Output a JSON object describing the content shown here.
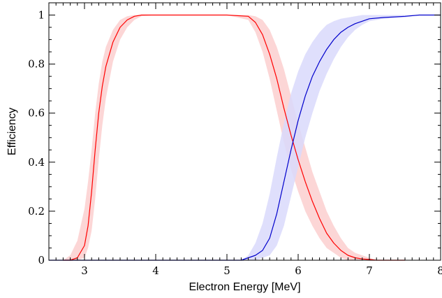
{
  "chart_data": {
    "type": "line",
    "title": "",
    "xlabel": "Electron Energy [MeV]",
    "ylabel": "Efficiency",
    "xlim": [
      2.5,
      8.0
    ],
    "ylim": [
      0,
      1.05
    ],
    "x_ticks": [
      3,
      4,
      5,
      6,
      7,
      8
    ],
    "x_tick_labels": [
      "3",
      "4",
      "5",
      "6",
      "7",
      "8"
    ],
    "y_ticks": [
      0,
      0.2,
      0.4,
      0.6,
      0.8,
      1
    ],
    "y_tick_labels": [
      "0",
      "0.2",
      "0.4",
      "0.6",
      "0.8",
      "1"
    ],
    "grid": false,
    "legend": "none",
    "series": [
      {
        "color": "#ff0000",
        "band_color": "#fccfcf",
        "x": [
          2.7,
          2.8,
          2.9,
          3.0,
          3.05,
          3.1,
          3.15,
          3.2,
          3.25,
          3.3,
          3.4,
          3.5,
          3.6,
          3.7,
          3.8,
          4.0,
          4.5,
          5.0,
          5.3,
          5.4,
          5.5,
          5.6,
          5.7,
          5.8,
          5.9,
          6.0,
          6.1,
          6.2,
          6.3,
          6.4,
          6.5,
          6.6,
          6.7,
          6.8,
          6.9,
          7.0,
          7.1,
          7.3,
          7.5
        ],
        "y": [
          0.0,
          0.0,
          0.01,
          0.06,
          0.14,
          0.28,
          0.45,
          0.6,
          0.71,
          0.79,
          0.89,
          0.95,
          0.98,
          0.995,
          1.0,
          1.0,
          1.0,
          1.0,
          0.995,
          0.97,
          0.92,
          0.84,
          0.74,
          0.62,
          0.51,
          0.41,
          0.32,
          0.24,
          0.17,
          0.11,
          0.07,
          0.04,
          0.02,
          0.01,
          0.005,
          0.003,
          0.0,
          0.0,
          0.0
        ],
        "band_lower": [
          0.0,
          0.0,
          0.0,
          0.01,
          0.05,
          0.12,
          0.25,
          0.41,
          0.55,
          0.66,
          0.81,
          0.9,
          0.95,
          0.98,
          0.995,
          1.0,
          1.0,
          1.0,
          0.98,
          0.93,
          0.85,
          0.74,
          0.61,
          0.48,
          0.37,
          0.28,
          0.2,
          0.14,
          0.09,
          0.05,
          0.03,
          0.01,
          0.0,
          0.0,
          0.0,
          0.0,
          0.0,
          0.0,
          0.0
        ],
        "band_upper": [
          0.0,
          0.02,
          0.08,
          0.21,
          0.32,
          0.45,
          0.6,
          0.72,
          0.81,
          0.87,
          0.94,
          0.98,
          0.995,
          1.0,
          1.0,
          1.0,
          1.0,
          1.0,
          1.0,
          0.995,
          0.98,
          0.94,
          0.87,
          0.78,
          0.67,
          0.56,
          0.46,
          0.36,
          0.28,
          0.2,
          0.14,
          0.09,
          0.05,
          0.03,
          0.02,
          0.01,
          0.0,
          0.0,
          0.0
        ]
      },
      {
        "color": "#0000cc",
        "band_color": "#d9d9fb",
        "x": [
          2.5,
          5.0,
          5.2,
          5.3,
          5.4,
          5.5,
          5.6,
          5.7,
          5.8,
          5.9,
          6.0,
          6.1,
          6.2,
          6.3,
          6.4,
          6.5,
          6.6,
          6.7,
          6.8,
          6.9,
          7.0,
          7.2,
          7.5,
          7.7,
          8.0
        ],
        "y": [
          0.0,
          0.0,
          0.0,
          0.01,
          0.02,
          0.04,
          0.09,
          0.19,
          0.32,
          0.45,
          0.57,
          0.67,
          0.75,
          0.81,
          0.86,
          0.9,
          0.93,
          0.95,
          0.965,
          0.975,
          0.985,
          0.99,
          0.995,
          1.0,
          1.0
        ],
        "band_lower": [
          0.0,
          0.0,
          0.0,
          0.0,
          0.0,
          0.01,
          0.02,
          0.06,
          0.14,
          0.26,
          0.38,
          0.5,
          0.6,
          0.69,
          0.76,
          0.82,
          0.87,
          0.91,
          0.94,
          0.96,
          0.975,
          0.985,
          0.99,
          1.0,
          1.0
        ],
        "band_upper": [
          0.0,
          0.0,
          0.0,
          0.02,
          0.07,
          0.15,
          0.27,
          0.42,
          0.56,
          0.68,
          0.77,
          0.84,
          0.89,
          0.93,
          0.96,
          0.975,
          0.985,
          0.99,
          0.995,
          1.0,
          1.0,
          1.0,
          1.0,
          1.0,
          1.0
        ]
      }
    ]
  }
}
